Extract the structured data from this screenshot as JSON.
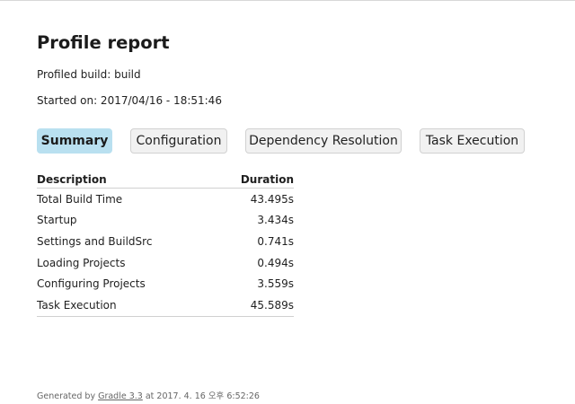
{
  "page": {
    "title": "Profile report",
    "profiled_build_label": "Profiled build: build",
    "started_on_label": "Started on: 2017/04/16 - 18:51:46"
  },
  "tabs": [
    {
      "label": "Summary",
      "selected": true
    },
    {
      "label": "Configuration",
      "selected": false
    },
    {
      "label": "Dependency Resolution",
      "selected": false
    },
    {
      "label": "Task Execution",
      "selected": false
    }
  ],
  "summary_table": {
    "headers": [
      "Description",
      "Duration"
    ],
    "rows": [
      {
        "description": "Total Build Time",
        "duration": "43.495s"
      },
      {
        "description": "Startup",
        "duration": "3.434s"
      },
      {
        "description": "Settings and BuildSrc",
        "duration": "0.741s"
      },
      {
        "description": "Loading Projects",
        "duration": "0.494s"
      },
      {
        "description": "Configuring Projects",
        "duration": "3.559s"
      },
      {
        "description": "Task Execution",
        "duration": "45.589s"
      }
    ]
  },
  "footer": {
    "prefix": "Generated by ",
    "link_text": "Gradle 3.3",
    "suffix": " at 2017. 4. 16 오후 6:52:26"
  },
  "colors": {
    "selected_tab_bg": "#b9e0f0",
    "tab_bg": "#f1f1f1",
    "tab_border": "#d1d1d1"
  }
}
